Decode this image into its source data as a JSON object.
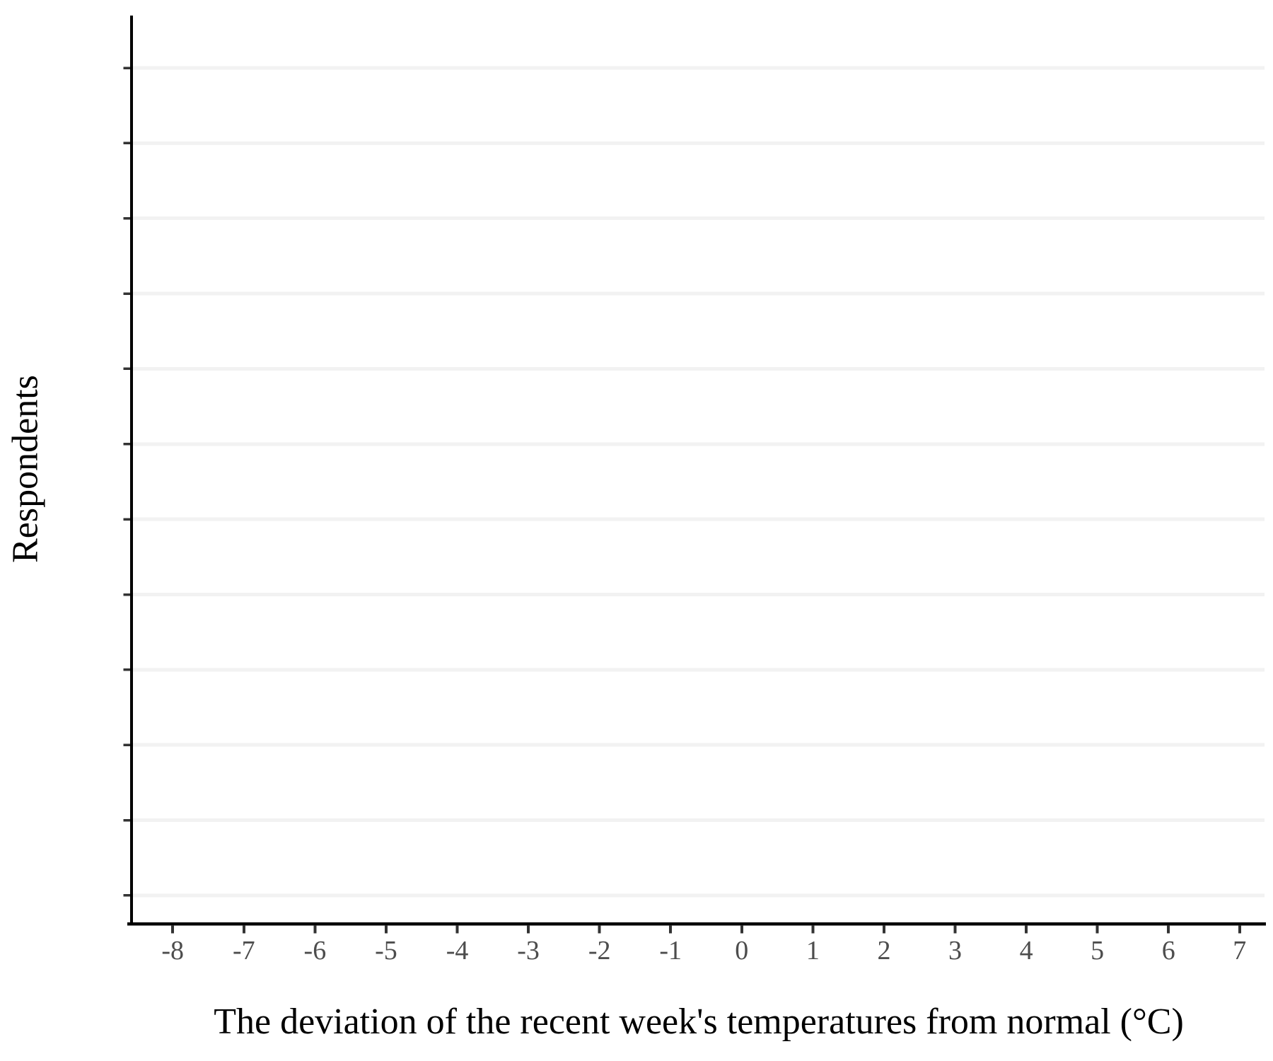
{
  "chart_data": {
    "type": "bar",
    "title": "",
    "xlabel": "The deviation of the recent week's temperatures from normal (°C)",
    "ylabel": "Respondents",
    "x_ticks": {
      "values": [
        -8,
        -7,
        -6,
        -5,
        -4,
        -3,
        -2,
        -1,
        0,
        1,
        2,
        3,
        4,
        5,
        6,
        7
      ],
      "labels": [
        "-8",
        "-7",
        "-6",
        "-5",
        "-4",
        "-3",
        "-2",
        "-1",
        "0",
        "1",
        "2",
        "3",
        "4",
        "5",
        "6",
        "7"
      ]
    },
    "y_ticks": {
      "count": 12,
      "labels_visible": false,
      "labels": []
    },
    "series": [],
    "xlim": [
      -8.6,
      7.4
    ],
    "grid": {
      "horizontal": true,
      "vertical": false
    },
    "legend": "none",
    "colors": {
      "background": "#ffffff",
      "axis_line": "#000000",
      "tick_mark": "#333333",
      "tick_label": "#4d4d4d",
      "gridline": "#f2f2f2",
      "axis_title": "#000000"
    }
  }
}
